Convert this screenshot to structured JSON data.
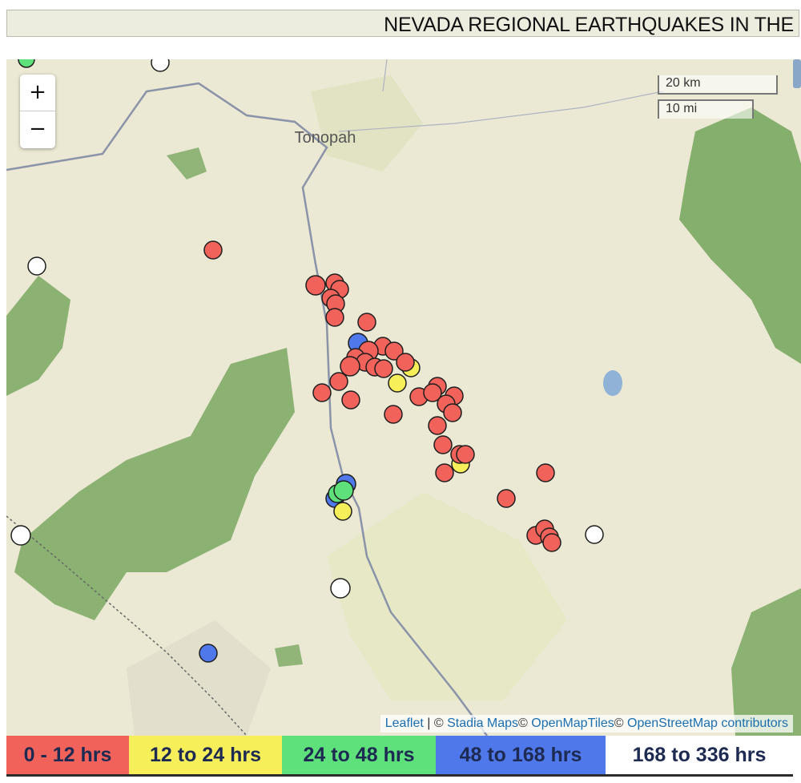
{
  "header": {
    "title": "NEVADA REGIONAL EARTHQUAKES IN THE"
  },
  "map": {
    "place_label": "Tonopah",
    "zoom_in_label": "+",
    "zoom_out_label": "−",
    "scale_km": "20 km",
    "scale_mi": "10 mi"
  },
  "attribution": {
    "leaflet": "Leaflet",
    "separator": "|",
    "copyright1": "©",
    "stadia": "Stadia Maps",
    "copyright2": "©",
    "openmaptiles": "OpenMapTiles",
    "copyright3": "©",
    "osm": "OpenStreetMap contributors"
  },
  "colors": {
    "age_0_12": "#f0625a",
    "age_12_24": "#f7ef5a",
    "age_24_48": "#5ee07a",
    "age_48_168": "#4f78ea",
    "age_168_336": "#ffffff"
  },
  "legend": [
    {
      "label": "0 - 12 hrs",
      "color": "#f0625a"
    },
    {
      "label": "12 to 24 hrs",
      "color": "#f7ef5a"
    },
    {
      "label": "24 to 48 hrs",
      "color": "#5ee07a"
    },
    {
      "label": "48 to 168 hrs",
      "color": "#4f78ea"
    },
    {
      "label": "168 to 336 hrs",
      "color": "#ffffff"
    }
  ]
}
